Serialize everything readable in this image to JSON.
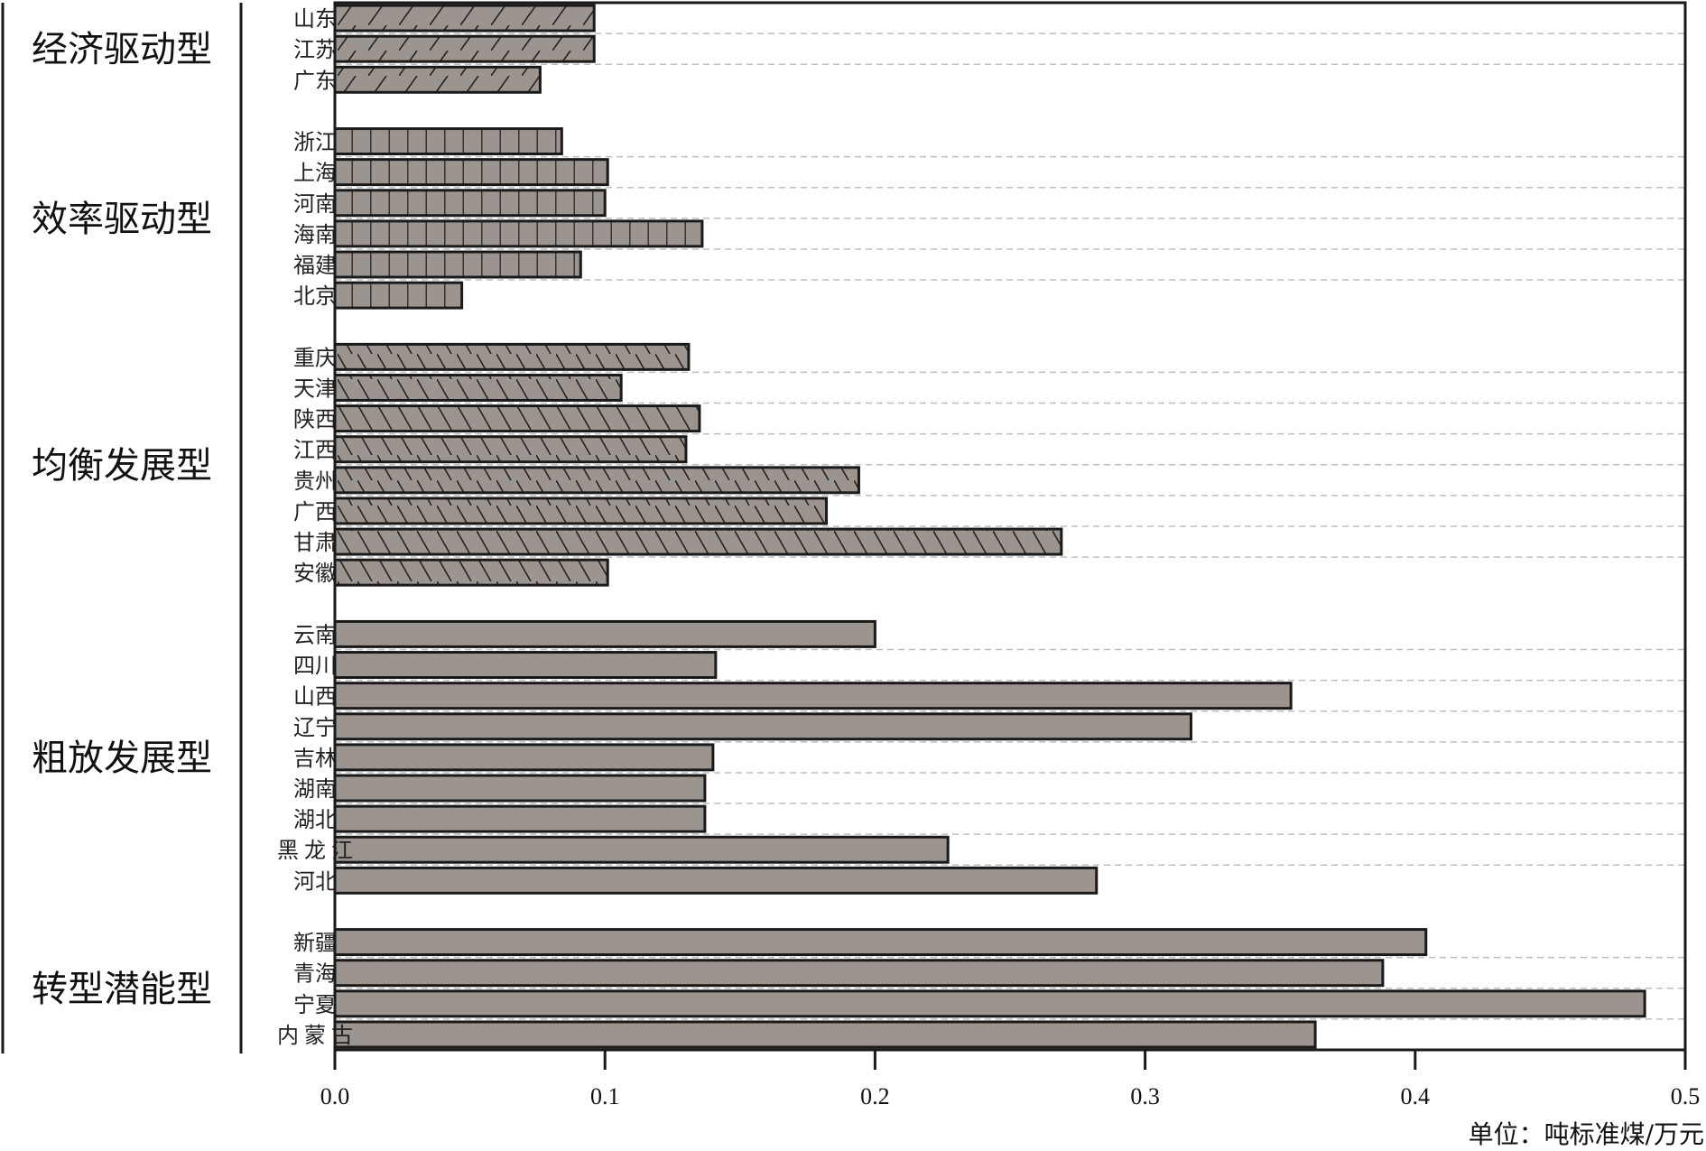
{
  "chart_data": {
    "type": "bar",
    "orientation": "horizontal",
    "title": "",
    "xlabel": "",
    "unit_label": "单位：吨标准煤/万元",
    "xlim": [
      0,
      0.5
    ],
    "xticks": [
      "0.0",
      "0.1",
      "0.2",
      "0.3",
      "0.4",
      "0.5"
    ],
    "grid": "dashed horizontal separators between bars",
    "colors": {
      "bar_fill": "#9c948f",
      "bar_stroke": "#1a1a1a",
      "axis": "#1a1a1a",
      "grid": "#bdbdbd"
    },
    "groups": [
      {
        "name": "经济驱动型",
        "pattern": "forward-diagonal",
        "categories": [
          "山东",
          "江苏",
          "广东"
        ],
        "values": [
          0.096,
          0.096,
          0.076
        ]
      },
      {
        "name": "效率驱动型",
        "pattern": "vertical-grid",
        "categories": [
          "浙江",
          "上海",
          "河南",
          "海南",
          "福建",
          "北京"
        ],
        "values": [
          0.084,
          0.101,
          0.1,
          0.136,
          0.091,
          0.047
        ]
      },
      {
        "name": "均衡发展型",
        "pattern": "back-diagonal",
        "categories": [
          "重庆",
          "天津",
          "陕西",
          "江西",
          "贵州",
          "广西",
          "甘肃",
          "安徽"
        ],
        "values": [
          0.131,
          0.106,
          0.135,
          0.13,
          0.194,
          0.182,
          0.269,
          0.101
        ]
      },
      {
        "name": "粗放发展型",
        "pattern": "solid",
        "categories": [
          "云南",
          "四川",
          "山西",
          "辽宁",
          "吉林",
          "湖南",
          "湖北",
          "黑龙江",
          "河北"
        ],
        "values": [
          0.2,
          0.141,
          0.354,
          0.317,
          0.14,
          0.137,
          0.137,
          0.227,
          0.282
        ]
      },
      {
        "name": "转型潜能型",
        "pattern": "solid",
        "categories": [
          "新疆",
          "青海",
          "宁夏",
          "内蒙古"
        ],
        "values": [
          0.404,
          0.388,
          0.485,
          0.363
        ]
      }
    ]
  }
}
